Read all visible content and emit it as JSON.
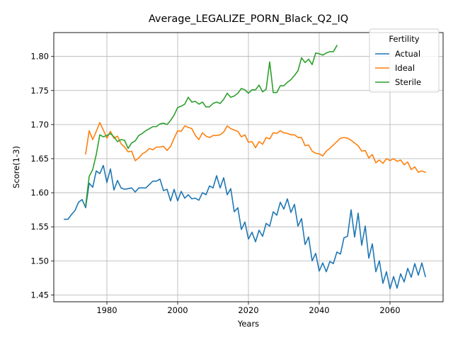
{
  "chart_data": {
    "type": "line",
    "title": "Average_LEGALIZE_PORN_Black_Q2_IQ",
    "xlabel": "Years",
    "ylabel": "Score(1-3)",
    "xlim": [
      1965,
      2075
    ],
    "ylim": [
      1.44,
      1.835
    ],
    "xticks": [
      1980,
      2000,
      2020,
      2040,
      2060
    ],
    "yticks": [
      1.45,
      1.5,
      1.55,
      1.6,
      1.65,
      1.7,
      1.75,
      1.8
    ],
    "ytick_labels": [
      "1.45",
      "1.50",
      "1.55",
      "1.60",
      "1.65",
      "1.70",
      "1.75",
      "1.80"
    ],
    "grid": true,
    "legend": {
      "title": "Fertility",
      "placement": "top-right"
    },
    "series": [
      {
        "name": "Actual",
        "color": "#1f77b4",
        "points": [
          [
            1968,
            1.561
          ],
          [
            1969,
            1.561
          ],
          [
            1970,
            1.568
          ],
          [
            1971,
            1.574
          ],
          [
            1972,
            1.586
          ],
          [
            1973,
            1.59
          ],
          [
            1974,
            1.578
          ],
          [
            1975,
            1.614
          ],
          [
            1976,
            1.608
          ],
          [
            1977,
            1.632
          ],
          [
            1978,
            1.628
          ],
          [
            1979,
            1.64
          ],
          [
            1980,
            1.615
          ],
          [
            1981,
            1.635
          ],
          [
            1982,
            1.604
          ],
          [
            1983,
            1.618
          ],
          [
            1984,
            1.607
          ],
          [
            1985,
            1.605
          ],
          [
            1986,
            1.606
          ],
          [
            1987,
            1.607
          ],
          [
            1988,
            1.601
          ],
          [
            1989,
            1.607
          ],
          [
            1990,
            1.607
          ],
          [
            1991,
            1.607
          ],
          [
            1992,
            1.612
          ],
          [
            1993,
            1.617
          ],
          [
            1994,
            1.617
          ],
          [
            1995,
            1.62
          ],
          [
            1996,
            1.603
          ],
          [
            1997,
            1.605
          ],
          [
            1998,
            1.588
          ],
          [
            1999,
            1.605
          ],
          [
            2000,
            1.588
          ],
          [
            2001,
            1.602
          ],
          [
            2002,
            1.592
          ],
          [
            2003,
            1.597
          ],
          [
            2004,
            1.591
          ],
          [
            2005,
            1.592
          ],
          [
            2006,
            1.589
          ],
          [
            2007,
            1.6
          ],
          [
            2008,
            1.597
          ],
          [
            2009,
            1.61
          ],
          [
            2010,
            1.607
          ],
          [
            2011,
            1.625
          ],
          [
            2012,
            1.607
          ],
          [
            2013,
            1.622
          ],
          [
            2014,
            1.597
          ],
          [
            2015,
            1.606
          ],
          [
            2016,
            1.572
          ],
          [
            2017,
            1.578
          ],
          [
            2018,
            1.546
          ],
          [
            2019,
            1.557
          ],
          [
            2020,
            1.532
          ],
          [
            2021,
            1.542
          ],
          [
            2022,
            1.528
          ],
          [
            2023,
            1.545
          ],
          [
            2024,
            1.536
          ],
          [
            2025,
            1.555
          ],
          [
            2026,
            1.551
          ],
          [
            2027,
            1.572
          ],
          [
            2028,
            1.567
          ],
          [
            2029,
            1.586
          ],
          [
            2030,
            1.576
          ],
          [
            2031,
            1.591
          ],
          [
            2032,
            1.571
          ],
          [
            2033,
            1.583
          ],
          [
            2034,
            1.551
          ],
          [
            2035,
            1.562
          ],
          [
            2036,
            1.524
          ],
          [
            2037,
            1.535
          ],
          [
            2038,
            1.5
          ],
          [
            2039,
            1.511
          ],
          [
            2040,
            1.485
          ],
          [
            2041,
            1.497
          ],
          [
            2042,
            1.484
          ],
          [
            2043,
            1.499
          ],
          [
            2044,
            1.496
          ],
          [
            2045,
            1.513
          ],
          [
            2046,
            1.51
          ],
          [
            2047,
            1.534
          ],
          [
            2048,
            1.536
          ],
          [
            2049,
            1.575
          ],
          [
            2050,
            1.535
          ],
          [
            2051,
            1.57
          ],
          [
            2052,
            1.523
          ],
          [
            2053,
            1.551
          ],
          [
            2054,
            1.504
          ],
          [
            2055,
            1.525
          ],
          [
            2056,
            1.484
          ],
          [
            2057,
            1.5
          ],
          [
            2058,
            1.467
          ],
          [
            2059,
            1.484
          ],
          [
            2060,
            1.459
          ],
          [
            2061,
            1.477
          ],
          [
            2062,
            1.46
          ],
          [
            2063,
            1.481
          ],
          [
            2064,
            1.469
          ],
          [
            2065,
            1.489
          ],
          [
            2066,
            1.476
          ],
          [
            2067,
            1.496
          ],
          [
            2068,
            1.479
          ],
          [
            2069,
            1.497
          ],
          [
            2070,
            1.477
          ]
        ]
      },
      {
        "name": "Ideal",
        "color": "#ff7f0e",
        "points": [
          [
            1974,
            1.657
          ],
          [
            1975,
            1.691
          ],
          [
            1976,
            1.678
          ],
          [
            1977,
            1.69
          ],
          [
            1978,
            1.703
          ],
          [
            1979,
            1.692
          ],
          [
            1980,
            1.68
          ],
          [
            1981,
            1.69
          ],
          [
            1982,
            1.68
          ],
          [
            1983,
            1.683
          ],
          [
            1984,
            1.672
          ],
          [
            1985,
            1.667
          ],
          [
            1986,
            1.66
          ],
          [
            1987,
            1.661
          ],
          [
            1988,
            1.647
          ],
          [
            1989,
            1.651
          ],
          [
            1990,
            1.657
          ],
          [
            1991,
            1.66
          ],
          [
            1992,
            1.665
          ],
          [
            1993,
            1.663
          ],
          [
            1994,
            1.667
          ],
          [
            1995,
            1.667
          ],
          [
            1996,
            1.668
          ],
          [
            1997,
            1.662
          ],
          [
            1998,
            1.668
          ],
          [
            1999,
            1.68
          ],
          [
            2000,
            1.691
          ],
          [
            2001,
            1.69
          ],
          [
            2002,
            1.698
          ],
          [
            2003,
            1.696
          ],
          [
            2004,
            1.694
          ],
          [
            2005,
            1.684
          ],
          [
            2006,
            1.678
          ],
          [
            2007,
            1.688
          ],
          [
            2008,
            1.683
          ],
          [
            2009,
            1.681
          ],
          [
            2010,
            1.684
          ],
          [
            2011,
            1.684
          ],
          [
            2012,
            1.685
          ],
          [
            2013,
            1.689
          ],
          [
            2014,
            1.698
          ],
          [
            2015,
            1.694
          ],
          [
            2016,
            1.692
          ],
          [
            2017,
            1.69
          ],
          [
            2018,
            1.682
          ],
          [
            2019,
            1.685
          ],
          [
            2020,
            1.674
          ],
          [
            2021,
            1.675
          ],
          [
            2022,
            1.666
          ],
          [
            2023,
            1.675
          ],
          [
            2024,
            1.671
          ],
          [
            2025,
            1.681
          ],
          [
            2026,
            1.679
          ],
          [
            2027,
            1.688
          ],
          [
            2028,
            1.687
          ],
          [
            2029,
            1.691
          ],
          [
            2030,
            1.688
          ],
          [
            2031,
            1.687
          ],
          [
            2032,
            1.685
          ],
          [
            2033,
            1.685
          ],
          [
            2034,
            1.681
          ],
          [
            2035,
            1.681
          ],
          [
            2036,
            1.669
          ],
          [
            2037,
            1.67
          ],
          [
            2038,
            1.661
          ],
          [
            2039,
            1.658
          ],
          [
            2040,
            1.657
          ],
          [
            2041,
            1.654
          ],
          [
            2042,
            1.661
          ],
          [
            2043,
            1.665
          ],
          [
            2044,
            1.67
          ],
          [
            2045,
            1.675
          ],
          [
            2046,
            1.68
          ],
          [
            2047,
            1.681
          ],
          [
            2048,
            1.68
          ],
          [
            2049,
            1.677
          ],
          [
            2050,
            1.673
          ],
          [
            2051,
            1.669
          ],
          [
            2052,
            1.661
          ],
          [
            2053,
            1.662
          ],
          [
            2054,
            1.651
          ],
          [
            2055,
            1.656
          ],
          [
            2056,
            1.644
          ],
          [
            2057,
            1.648
          ],
          [
            2058,
            1.643
          ],
          [
            2059,
            1.65
          ],
          [
            2060,
            1.647
          ],
          [
            2061,
            1.65
          ],
          [
            2062,
            1.646
          ],
          [
            2063,
            1.648
          ],
          [
            2064,
            1.641
          ],
          [
            2065,
            1.645
          ],
          [
            2066,
            1.634
          ],
          [
            2067,
            1.638
          ],
          [
            2068,
            1.63
          ],
          [
            2069,
            1.632
          ],
          [
            2070,
            1.63
          ]
        ]
      },
      {
        "name": "Sterile",
        "color": "#2ca02c",
        "points": [
          [
            1974,
            1.581
          ],
          [
            1975,
            1.624
          ],
          [
            1976,
            1.634
          ],
          [
            1977,
            1.656
          ],
          [
            1978,
            1.685
          ],
          [
            1979,
            1.682
          ],
          [
            1980,
            1.684
          ],
          [
            1981,
            1.687
          ],
          [
            1982,
            1.682
          ],
          [
            1983,
            1.675
          ],
          [
            1984,
            1.678
          ],
          [
            1985,
            1.677
          ],
          [
            1986,
            1.665
          ],
          [
            1987,
            1.673
          ],
          [
            1988,
            1.676
          ],
          [
            1989,
            1.684
          ],
          [
            1990,
            1.687
          ],
          [
            1991,
            1.691
          ],
          [
            1992,
            1.694
          ],
          [
            1993,
            1.697
          ],
          [
            1994,
            1.697
          ],
          [
            1995,
            1.701
          ],
          [
            1996,
            1.702
          ],
          [
            1997,
            1.7
          ],
          [
            1998,
            1.706
          ],
          [
            1999,
            1.714
          ],
          [
            2000,
            1.725
          ],
          [
            2001,
            1.727
          ],
          [
            2002,
            1.73
          ],
          [
            2003,
            1.74
          ],
          [
            2004,
            1.733
          ],
          [
            2005,
            1.734
          ],
          [
            2006,
            1.73
          ],
          [
            2007,
            1.733
          ],
          [
            2008,
            1.726
          ],
          [
            2009,
            1.726
          ],
          [
            2010,
            1.731
          ],
          [
            2011,
            1.733
          ],
          [
            2012,
            1.731
          ],
          [
            2013,
            1.737
          ],
          [
            2014,
            1.746
          ],
          [
            2015,
            1.74
          ],
          [
            2016,
            1.742
          ],
          [
            2017,
            1.746
          ],
          [
            2018,
            1.753
          ],
          [
            2019,
            1.751
          ],
          [
            2020,
            1.746
          ],
          [
            2021,
            1.751
          ],
          [
            2022,
            1.751
          ],
          [
            2023,
            1.758
          ],
          [
            2024,
            1.748
          ],
          [
            2025,
            1.752
          ],
          [
            2026,
            1.792
          ],
          [
            2027,
            1.747
          ],
          [
            2028,
            1.747
          ],
          [
            2029,
            1.757
          ],
          [
            2030,
            1.757
          ],
          [
            2031,
            1.762
          ],
          [
            2032,
            1.766
          ],
          [
            2033,
            1.772
          ],
          [
            2034,
            1.779
          ],
          [
            2035,
            1.798
          ],
          [
            2036,
            1.791
          ],
          [
            2037,
            1.796
          ],
          [
            2038,
            1.788
          ],
          [
            2039,
            1.805
          ],
          [
            2040,
            1.804
          ],
          [
            2041,
            1.802
          ],
          [
            2042,
            1.805
          ],
          [
            2043,
            1.807
          ],
          [
            2044,
            1.807
          ],
          [
            2045,
            1.816
          ]
        ]
      }
    ]
  }
}
